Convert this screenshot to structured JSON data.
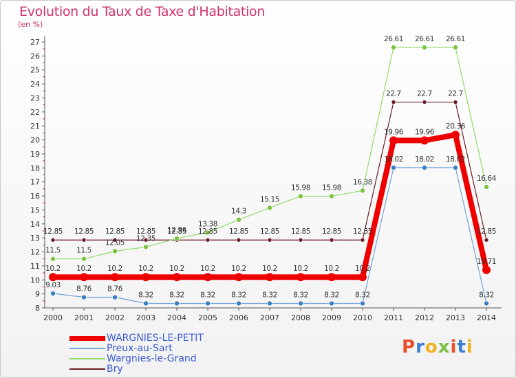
{
  "title": "Evolution du Taux de Taxe d'Habitation",
  "unit": "(en %)",
  "logo": {
    "text": "Proxiti",
    "colors": [
      "#e8502a",
      "#3a7fd5",
      "#f0b020",
      "#7cc242",
      "#e8502a",
      "#3a7fd5",
      "#f0b020"
    ]
  },
  "chart_data": {
    "type": "line",
    "x": [
      "2000",
      "2001",
      "2002",
      "2003",
      "2004",
      "2005",
      "2006",
      "2007",
      "2008",
      "2009",
      "2010",
      "2011",
      "2012",
      "2013",
      "2014"
    ],
    "ylim": [
      8,
      27
    ],
    "yticks": [
      8,
      9,
      10,
      11,
      12,
      13,
      14,
      15,
      16,
      17,
      18,
      19,
      20,
      21,
      22,
      23,
      24,
      25,
      26,
      27
    ],
    "grid": false,
    "series": [
      {
        "name": "Bry",
        "color": "#6b1a22",
        "marker": "#6b1a22",
        "width": 1.2,
        "radius": 3,
        "values": [
          12.85,
          12.85,
          12.85,
          12.85,
          12.85,
          12.85,
          12.85,
          12.85,
          12.85,
          12.85,
          12.85,
          22.7,
          22.7,
          22.7,
          12.85
        ],
        "labels": [
          "12.85",
          "12.85",
          "12.85",
          "12.85",
          "12.85",
          "12.85",
          "12.85",
          "12.85",
          "12.85",
          "12.85",
          "12.85",
          "22.7",
          "22.7",
          "22.7",
          "12.85"
        ]
      },
      {
        "name": "Wargnies-le-Grand",
        "color": "#8fdc6a",
        "marker": "#7cc242",
        "width": 1.2,
        "radius": 3.5,
        "values": [
          11.5,
          11.5,
          12.05,
          12.35,
          12.96,
          13.38,
          14.3,
          15.15,
          15.98,
          15.98,
          16.38,
          26.61,
          26.61,
          26.61,
          16.64
        ],
        "labels": [
          "11.5",
          "11.5",
          "12.05",
          "12.35",
          "12.96",
          "13.38",
          "14.3",
          "15.15",
          "15.98",
          "15.98",
          "16.38",
          "26.61",
          "26.61",
          "26.61",
          "16.64"
        ]
      },
      {
        "name": "Preux-au-Sart",
        "color": "#6fa3d8",
        "marker": "#3a7fc2",
        "width": 1.2,
        "radius": 3.5,
        "values": [
          9.03,
          8.76,
          8.76,
          8.32,
          8.32,
          8.32,
          8.32,
          8.32,
          8.32,
          8.32,
          8.32,
          18.02,
          18.02,
          18.02,
          8.32
        ],
        "labels": [
          "9.03",
          "8.76",
          "8.76",
          "8.32",
          "8.32",
          "8.32",
          "8.32",
          "8.32",
          "8.32",
          "8.32",
          "8.32",
          "18.02",
          "18.02",
          "18.02",
          "8.32"
        ]
      },
      {
        "name": "WARGNIES-LE-PETIT",
        "color": "#ee0000",
        "marker": "#ee0000",
        "width": 8,
        "radius": 6,
        "values": [
          10.2,
          10.2,
          10.2,
          10.2,
          10.2,
          10.2,
          10.2,
          10.2,
          10.2,
          10.2,
          10.2,
          19.96,
          19.96,
          20.36,
          10.71
        ],
        "labels": [
          "10.2",
          "10.2",
          "10.2",
          "10.2",
          "10.2",
          "10.2",
          "10.2",
          "10.2",
          "10.2",
          "10.2",
          "10.2",
          "19.96",
          "19.96",
          "20.36",
          "10.71"
        ]
      }
    ],
    "legend_order": [
      "WARGNIES-LE-PETIT",
      "Preux-au-Sart",
      "Wargnies-le-Grand",
      "Bry"
    ],
    "legend_position": "bottom-left"
  }
}
